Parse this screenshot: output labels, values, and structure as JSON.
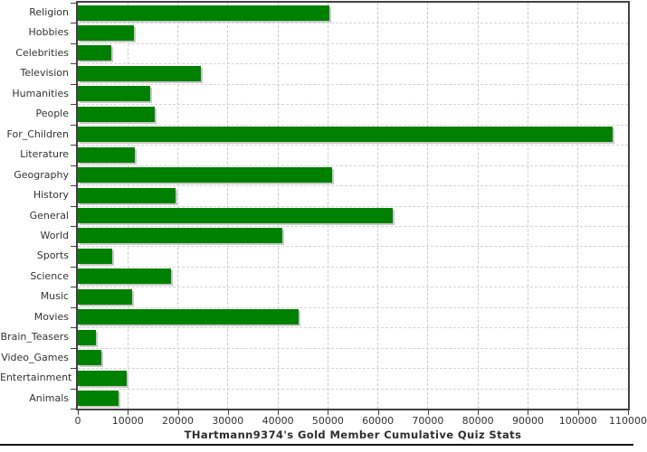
{
  "window": {
    "background_color": "#ffffff",
    "bottom_border_color": "#141414"
  },
  "chart_data": {
    "type": "bar",
    "orientation": "horizontal",
    "title": "THartmann9374's Gold Member Cumulative Quiz Stats",
    "xlabel": "",
    "ylabel": "",
    "categories": [
      "Religion",
      "Hobbies",
      "Celebrities",
      "Television",
      "Humanities",
      "People",
      "For_Children",
      "Literature",
      "Geography",
      "History",
      "General",
      "World",
      "Sports",
      "Science",
      "Music",
      "Movies",
      "Brain_Teasers",
      "Video_Games",
      "Entertainment",
      "Animals"
    ],
    "values": [
      50300,
      11200,
      6700,
      24600,
      14500,
      15400,
      107000,
      11400,
      50900,
      19600,
      63000,
      40800,
      6900,
      18700,
      10800,
      44100,
      3600,
      4700,
      9800,
      8200
    ],
    "xlim": [
      0,
      110000
    ],
    "x_ticks": [
      0,
      10000,
      20000,
      30000,
      40000,
      50000,
      60000,
      70000,
      80000,
      90000,
      100000,
      110000
    ],
    "grid": true,
    "legend": "none",
    "bar_color": "#008000",
    "bar_shadow_color": "#c9c9c9",
    "gridline_color": "#cccccc",
    "axis_color": "#424242",
    "label_color": "#333333"
  }
}
